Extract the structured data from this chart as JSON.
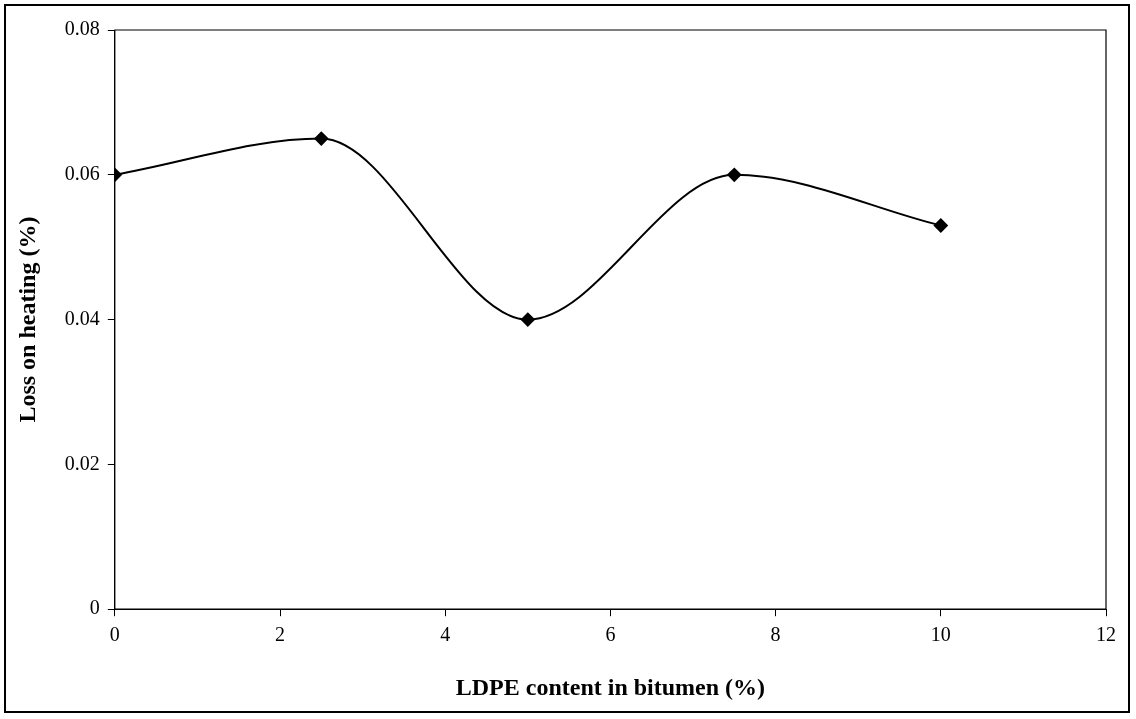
{
  "chart_data": {
    "type": "line",
    "xlabel": "LDPE content in bitumen (%)",
    "ylabel": "Loss on heating (%)",
    "x": [
      0,
      2.5,
      5,
      7.5,
      10
    ],
    "series": [
      {
        "color": "#000000",
        "values": [
          0.06,
          0.065,
          0.04,
          0.06,
          0.053
        ]
      }
    ],
    "xlim": [
      0,
      12
    ],
    "xticks": [
      0,
      2,
      4,
      6,
      8,
      10,
      12
    ],
    "ylim": [
      0,
      0.08
    ],
    "yticks": [
      0,
      0.02,
      0.04,
      0.06,
      0.08
    ],
    "grid": false,
    "legend": false,
    "marker": "diamond",
    "line_style": "solid"
  }
}
